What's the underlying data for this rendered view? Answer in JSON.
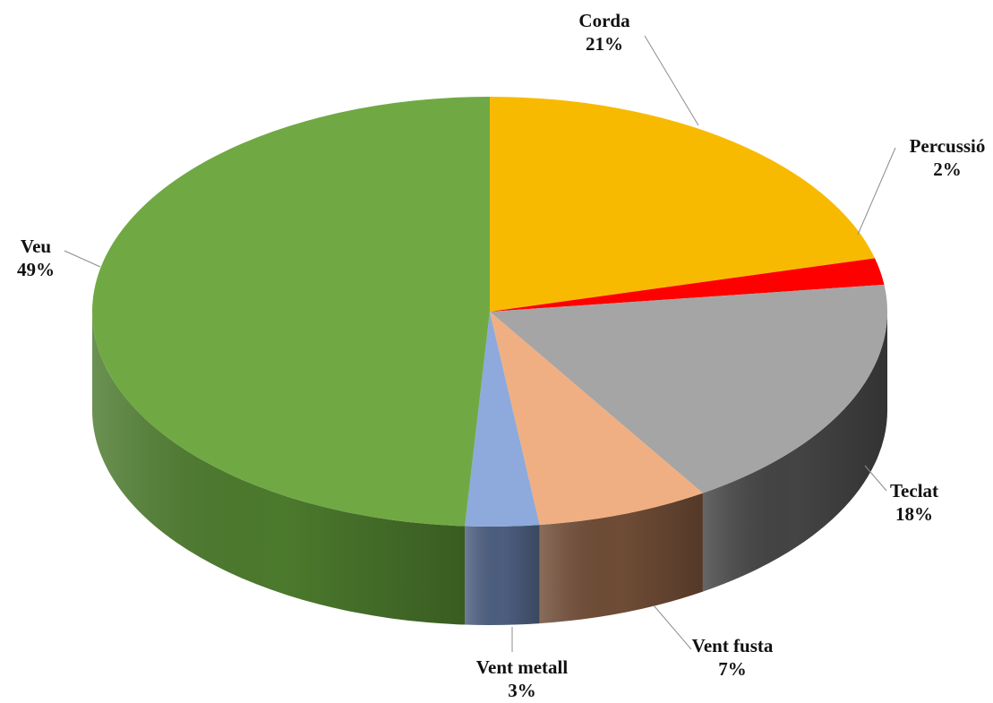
{
  "chart_data": {
    "type": "pie",
    "style": "3d",
    "title": "",
    "legend": "none",
    "slices": [
      {
        "label": "Corda",
        "value": 21,
        "value_label": "21%",
        "color": "#F8BA00",
        "side_color": "#B98C00"
      },
      {
        "label": "Percussió",
        "value": 2,
        "value_label": "2%",
        "color": "#FF0000",
        "side_color": "#B80000"
      },
      {
        "label": "Teclat",
        "value": 18,
        "value_label": "18%",
        "color": "#A5A5A5",
        "side_color": "#444444"
      },
      {
        "label": "Vent fusta",
        "value": 7,
        "value_label": "7%",
        "color": "#F0AF82",
        "side_color": "#6F4C36"
      },
      {
        "label": "Vent metall",
        "value": 3,
        "value_label": "3%",
        "color": "#8EA9DB",
        "side_color": "#4D5F80"
      },
      {
        "label": "Veu",
        "value": 49,
        "value_label": "49%",
        "color": "#70A944",
        "side_color": "#4C7A2D"
      }
    ]
  }
}
